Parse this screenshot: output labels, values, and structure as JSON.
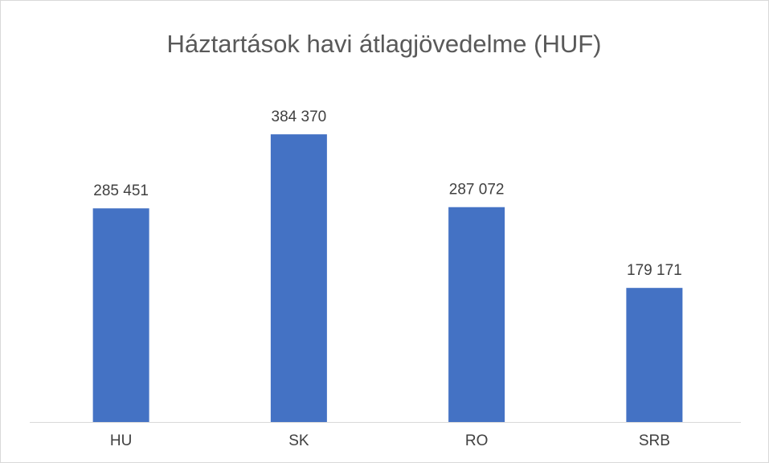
{
  "chart_data": {
    "type": "bar",
    "title": "Háztartások havi átlagjövedelme (HUF)",
    "categories": [
      "HU",
      "SK",
      "RO",
      "SRB"
    ],
    "values": [
      285451,
      384370,
      287072,
      179171
    ],
    "value_labels": [
      "285 451",
      "384 370",
      "287 072",
      "179 171"
    ],
    "color": "#4472c4",
    "ylim": [
      0,
      450000
    ]
  }
}
